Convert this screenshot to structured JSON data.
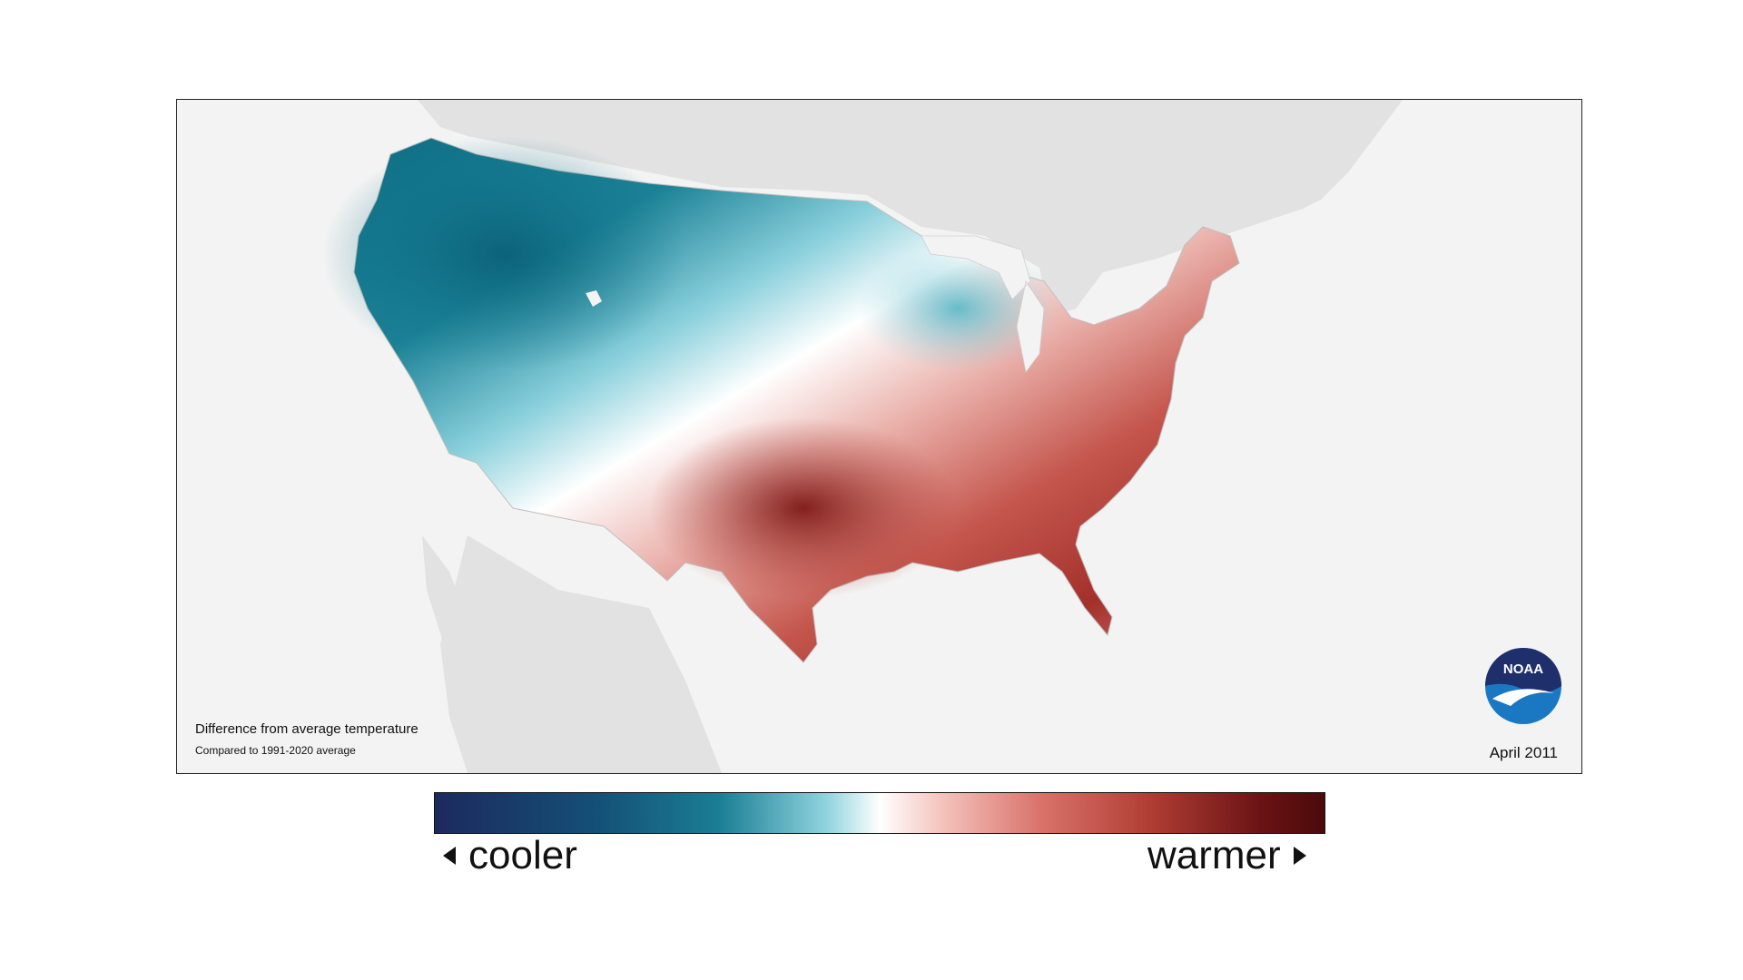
{
  "map": {
    "caption_title": "Difference from average temperature",
    "caption_subtitle": "Compared to 1991-2020 average",
    "date": "April 2011",
    "logo_text": "NOAA",
    "cool_region_color": "#17798d",
    "warm_region_color": "#b03a33",
    "neutral_color": "#ffffff",
    "land_color": "#e2e2e2",
    "ocean_color": "#f3f3f3"
  },
  "legend": {
    "cooler_label": "cooler",
    "warmer_label": "warmer",
    "scale_colors": [
      "#1c2a5e",
      "#1b7e94",
      "#ffffff",
      "#d9736b",
      "#4c0a0a"
    ]
  }
}
